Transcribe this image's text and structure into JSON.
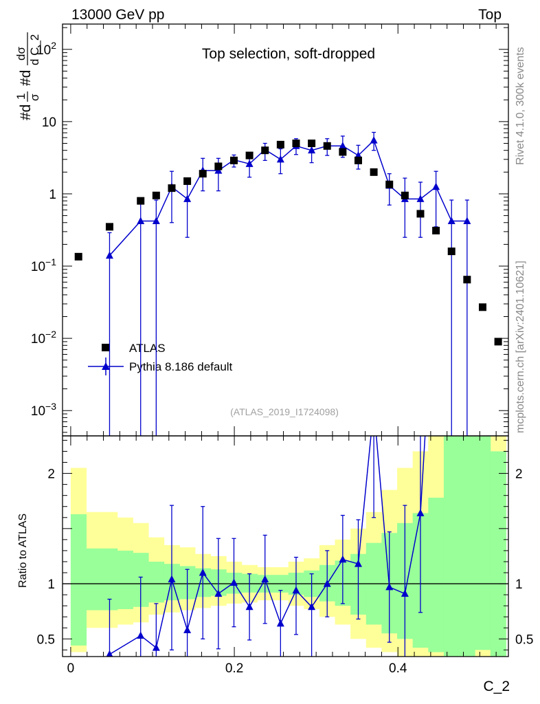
{
  "header": {
    "left": "13000 GeV pp",
    "right": "Top"
  },
  "side_labels": {
    "rivet": "Rivet 4.1.0,  300k events",
    "mcplots": "mcplots.cern.ch [arXiv:2401.10621]"
  },
  "chart_data": {
    "type": "scatter",
    "title": "Top selection, soft-dropped",
    "analysis_id": "(ATLAS_2019_I1724098)",
    "xlabel": "C_2",
    "ylabel_main": "#d1/σ #d dσ/d C_2",
    "ylabel_main_parts": {
      "prefix1": "#d",
      "num1": "1",
      "den1": "σ",
      "prefix2": "#d",
      "num2": "dσ",
      "den2": "d C_2"
    },
    "ylabel_ratio": "Ratio to ATLAS",
    "xlim": [
      -0.01,
      0.535
    ],
    "ylim_main_log10": [
      -3.35,
      2.35
    ],
    "ylim_ratio": [
      0.34,
      2.34
    ],
    "x_ticks": [
      {
        "v": 0,
        "label": "0"
      },
      {
        "v": 0.2,
        "label": "0.2"
      },
      {
        "v": 0.4,
        "label": "0.4"
      }
    ],
    "y_ticks_main": [
      {
        "exp": -3,
        "label": "10",
        "sup": "−3"
      },
      {
        "exp": -2,
        "label": "10",
        "sup": "−2"
      },
      {
        "exp": -1,
        "label": "10",
        "sup": "−1"
      },
      {
        "exp": 0,
        "label": "1",
        "sup": ""
      },
      {
        "exp": 1,
        "label": "10",
        "sup": ""
      },
      {
        "exp": 2,
        "label": "10",
        "sup": "2"
      }
    ],
    "y_ticks_ratio": [
      {
        "v": 0.5,
        "label": "0.5"
      },
      {
        "v": 1,
        "label": "1"
      },
      {
        "v": 2,
        "label": "2"
      }
    ],
    "legend": [
      {
        "name": "ATLAS",
        "marker": "square",
        "color": "#000000"
      },
      {
        "name": "Pythia 8.186 default",
        "marker": "triangle",
        "color": "#0000cc"
      }
    ],
    "bin_edges": [
      0,
      0.019,
      0.038,
      0.057,
      0.076,
      0.095,
      0.114,
      0.133,
      0.152,
      0.171,
      0.19,
      0.209,
      0.228,
      0.247,
      0.266,
      0.285,
      0.304,
      0.323,
      0.342,
      0.361,
      0.38,
      0.399,
      0.418,
      0.437,
      0.456,
      0.475,
      0.494,
      0.513,
      0.532
    ],
    "atlas": {
      "x": [
        0.0095,
        0.0475,
        0.0855,
        0.1045,
        0.1235,
        0.1425,
        0.1615,
        0.1805,
        0.1995,
        0.2185,
        0.2375,
        0.2565,
        0.2755,
        0.2945,
        0.3135,
        0.3325,
        0.3515,
        0.3705,
        0.3895,
        0.4085,
        0.4275,
        0.4465,
        0.4655,
        0.4845,
        0.5035,
        0.5225
      ],
      "y": [
        0.135,
        0.35,
        0.8,
        0.95,
        1.2,
        1.5,
        1.9,
        2.4,
        2.9,
        3.4,
        4.0,
        4.8,
        5.0,
        5.0,
        4.6,
        3.8,
        2.9,
        2.0,
        1.35,
        0.95,
        0.53,
        0.31,
        0.16,
        0.065,
        0.027,
        0.009
      ]
    },
    "pythia": {
      "x": [
        0.0475,
        0.0855,
        0.1045,
        0.1235,
        0.1425,
        0.1615,
        0.1805,
        0.1995,
        0.2185,
        0.2375,
        0.2565,
        0.2755,
        0.2945,
        0.3135,
        0.3325,
        0.3515,
        0.3705,
        0.3895,
        0.4085,
        0.4275,
        0.4465,
        0.4655,
        0.4845
      ],
      "y": [
        0.14,
        0.42,
        0.42,
        1.25,
        0.85,
        2.1,
        2.1,
        2.95,
        2.6,
        4.1,
        3.0,
        4.6,
        4.0,
        4.6,
        4.6,
        3.4,
        5.5,
        1.3,
        0.85,
        0.85,
        1.25,
        0.42,
        0.42
      ],
      "y_err_up": [
        0.15,
        0.4,
        0.4,
        0.8,
        0.65,
        1.0,
        1.0,
        0.5,
        0.8,
        0.9,
        1.2,
        1.2,
        1.1,
        1.2,
        1.7,
        1.3,
        1.6,
        0.6,
        0.8,
        0.6,
        0.8,
        0.4,
        0.4
      ],
      "y_err_down": [
        0.14,
        0.42,
        0.42,
        0.85,
        0.6,
        1.0,
        1.0,
        0.6,
        0.9,
        1.2,
        1.1,
        1.1,
        1.3,
        1.2,
        1.4,
        1.2,
        1.5,
        0.6,
        0.6,
        0.6,
        0.9,
        0.42,
        0.42
      ],
      "ratio": [
        0.36,
        0.53,
        0.42,
        1.04,
        0.58,
        1.1,
        0.91,
        1.01,
        0.79,
        1.04,
        0.64,
        0.94,
        0.79,
        1.0,
        1.22,
        1.18,
        2.6,
        0.97,
        0.91,
        1.64,
        4.0,
        null,
        null
      ],
      "ratio_err_up": [
        0.5,
        0.53,
        0.4,
        0.67,
        0.55,
        0.6,
        0.5,
        0.4,
        0.3,
        0.4,
        0.3,
        0.3,
        0.3,
        0.3,
        0.4,
        0.4,
        0.8,
        0.5,
        0.8,
        0.8,
        0,
        0,
        0
      ],
      "ratio_err_down": [
        0.36,
        0.53,
        0.42,
        0.64,
        0.58,
        0.6,
        0.5,
        0.4,
        0.3,
        0.4,
        0.64,
        0.4,
        0.5,
        0.3,
        0.4,
        0.5,
        1.0,
        0.5,
        0.91,
        0.9,
        0,
        0,
        0
      ]
    },
    "ratio_bands": {
      "yellow_up": [
        2.05,
        1.65,
        1.65,
        1.6,
        1.55,
        1.42,
        1.35,
        1.33,
        1.27,
        1.25,
        1.2,
        1.17,
        1.15,
        1.15,
        1.2,
        1.23,
        1.35,
        1.4,
        1.5,
        1.65,
        1.85,
        2.05,
        2.2,
        2.4,
        2.6,
        2.6,
        2.6,
        2.6
      ],
      "yellow_down": [
        0.38,
        0.6,
        0.6,
        0.63,
        0.65,
        0.72,
        0.74,
        0.76,
        0.78,
        0.8,
        0.82,
        0.83,
        0.85,
        0.85,
        0.8,
        0.77,
        0.7,
        0.63,
        0.5,
        0.42,
        0.38,
        0.34,
        0.34,
        0.34,
        0.34,
        0.34,
        0.34,
        0.34
      ],
      "green_up": [
        1.63,
        1.32,
        1.32,
        1.3,
        1.28,
        1.2,
        1.18,
        1.16,
        1.14,
        1.13,
        1.1,
        1.09,
        1.08,
        1.08,
        1.1,
        1.12,
        1.17,
        1.21,
        1.27,
        1.37,
        1.46,
        1.55,
        1.64,
        1.78,
        2.6,
        2.6,
        2.4,
        2.2
      ],
      "green_down": [
        0.44,
        0.76,
        0.76,
        0.77,
        0.79,
        0.83,
        0.85,
        0.86,
        0.88,
        0.89,
        0.91,
        0.92,
        0.92,
        0.92,
        0.9,
        0.88,
        0.84,
        0.8,
        0.72,
        0.63,
        0.55,
        0.5,
        0.42,
        0.38,
        0.34,
        0.34,
        0.4,
        0.34
      ]
    }
  }
}
